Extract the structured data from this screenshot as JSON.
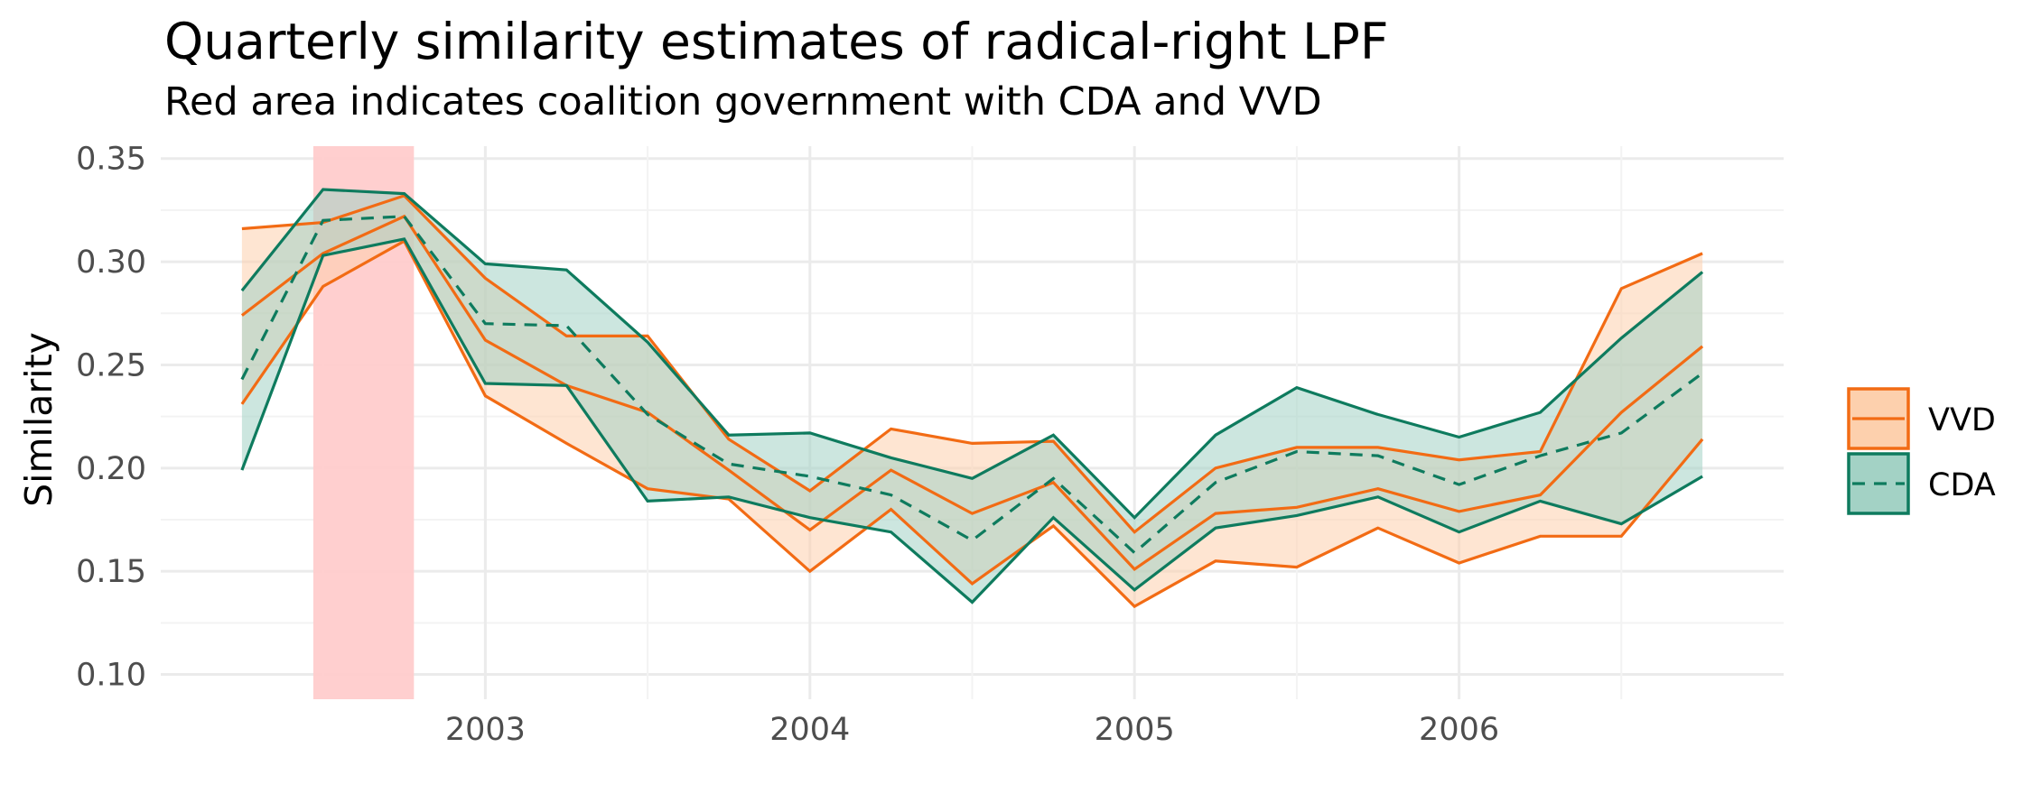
{
  "chart_data": {
    "type": "line",
    "title": "Quarterly similarity estimates of radical-right LPF",
    "subtitle": "Red area indicates coalition government with CDA and VVD",
    "xlabel": "",
    "ylabel": "Similarity",
    "xlim": [
      2002.0,
      2007.0
    ],
    "ylim": [
      0.088,
      0.356
    ],
    "x_ticks": [
      2003,
      2004,
      2005,
      2006
    ],
    "y_ticks": [
      0.1,
      0.15,
      0.2,
      0.25,
      0.3,
      0.35
    ],
    "x_tick_labels": [
      "2003",
      "2004",
      "2005",
      "2006"
    ],
    "y_tick_labels": [
      "0.10",
      "0.15",
      "0.20",
      "0.25",
      "0.30",
      "0.35"
    ],
    "grid": true,
    "legend_position": "right",
    "highlight": {
      "x_start": 2002.47,
      "x_end": 2002.78,
      "color": "#ffcccc"
    },
    "x": [
      2002.25,
      2002.5,
      2002.75,
      2003.0,
      2003.25,
      2003.5,
      2003.75,
      2004.0,
      2004.25,
      2004.5,
      2004.75,
      2005.0,
      2005.25,
      2005.5,
      2005.75,
      2006.0,
      2006.25,
      2006.5,
      2006.75
    ],
    "series": [
      {
        "name": "VVD",
        "color": "#f26b14",
        "fill": "#fdd0ad",
        "linetype": "solid",
        "mean": [
          0.274,
          0.304,
          0.322,
          0.262,
          0.24,
          0.227,
          0.199,
          0.17,
          0.199,
          0.178,
          0.193,
          0.151,
          0.178,
          0.181,
          0.19,
          0.179,
          0.187,
          0.227,
          0.259
        ],
        "lower": [
          0.231,
          0.288,
          0.31,
          0.235,
          0.212,
          0.19,
          0.185,
          0.15,
          0.18,
          0.144,
          0.172,
          0.133,
          0.155,
          0.152,
          0.171,
          0.154,
          0.167,
          0.167,
          0.214
        ],
        "upper": [
          0.316,
          0.319,
          0.332,
          0.292,
          0.264,
          0.264,
          0.214,
          0.189,
          0.219,
          0.212,
          0.213,
          0.169,
          0.2,
          0.21,
          0.21,
          0.204,
          0.208,
          0.287,
          0.304
        ]
      },
      {
        "name": "CDA",
        "color": "#0e7b5e",
        "fill": "#a3d2c5",
        "linetype": "dashed",
        "mean": [
          0.243,
          0.32,
          0.322,
          0.27,
          0.269,
          0.226,
          0.202,
          0.196,
          0.187,
          0.165,
          0.195,
          0.159,
          0.193,
          0.208,
          0.206,
          0.192,
          0.206,
          0.217,
          0.246
        ],
        "lower": [
          0.199,
          0.303,
          0.311,
          0.241,
          0.24,
          0.184,
          0.186,
          0.176,
          0.169,
          0.135,
          0.176,
          0.141,
          0.171,
          0.177,
          0.186,
          0.169,
          0.184,
          0.173,
          0.196
        ],
        "upper": [
          0.286,
          0.335,
          0.333,
          0.299,
          0.296,
          0.261,
          0.216,
          0.217,
          0.205,
          0.195,
          0.216,
          0.176,
          0.216,
          0.239,
          0.226,
          0.215,
          0.227,
          0.263,
          0.295
        ]
      }
    ]
  }
}
